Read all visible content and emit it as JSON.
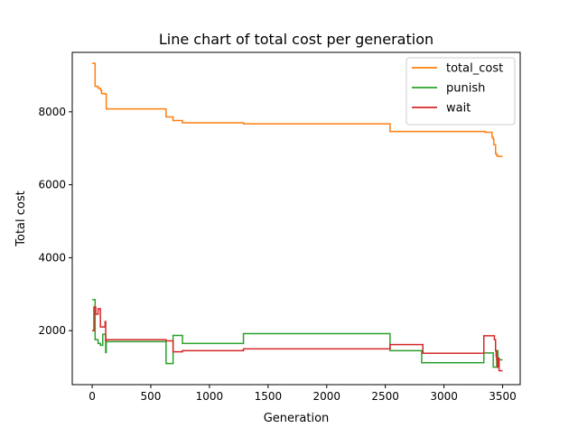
{
  "chart_data": {
    "type": "line",
    "step": true,
    "title": "Line chart of total cost per generation",
    "xlabel": "Generation",
    "ylabel": "Total cost",
    "xlim": [
      -170,
      3650
    ],
    "ylim": [
      520,
      9630
    ],
    "xticks": [
      0,
      500,
      1000,
      1500,
      2000,
      2500,
      3000,
      3500
    ],
    "yticks": [
      2000,
      4000,
      6000,
      8000
    ],
    "grid": false,
    "legend_position": "top-right",
    "series": [
      {
        "name": "total_cost",
        "color": "#ff7f0e",
        "x": [
          0,
          25,
          50,
          70,
          80,
          110,
          120,
          620,
          630,
          680,
          690,
          760,
          770,
          1280,
          1290,
          2530,
          2540,
          3330,
          3350,
          3400,
          3410,
          3420,
          3425,
          3440,
          3450,
          3460,
          3500
        ],
        "y": [
          9330,
          8700,
          8650,
          8600,
          8500,
          8490,
          8080,
          8080,
          7860,
          7860,
          7760,
          7760,
          7700,
          7700,
          7670,
          7670,
          7460,
          7460,
          7440,
          7440,
          7300,
          7250,
          7100,
          6850,
          6800,
          6780,
          6780
        ]
      },
      {
        "name": "punish",
        "color": "#2ca02c",
        "x": [
          0,
          25,
          50,
          70,
          90,
          115,
          120,
          620,
          630,
          680,
          690,
          760,
          770,
          1280,
          1290,
          2530,
          2540,
          2800,
          2810,
          3330,
          3340,
          3410,
          3420,
          3440,
          3450,
          3460,
          3500
        ],
        "y": [
          2850,
          1750,
          1650,
          1600,
          1900,
          1400,
          1700,
          1700,
          1100,
          1100,
          1870,
          1870,
          1650,
          1650,
          1920,
          1920,
          1450,
          1450,
          1120,
          1120,
          1390,
          1390,
          1000,
          1000,
          1450,
          1200,
          1200
        ]
      },
      {
        "name": "wait",
        "color": "#d62728",
        "x": [
          0,
          15,
          30,
          50,
          70,
          90,
          110,
          115,
          120,
          620,
          630,
          680,
          690,
          760,
          770,
          1280,
          1290,
          2530,
          2540,
          2810,
          2820,
          3330,
          3340,
          3420,
          3430,
          3440,
          3445,
          3450,
          3455,
          3460,
          3465,
          3470,
          3500
        ],
        "y": [
          2000,
          2650,
          2450,
          2600,
          2100,
          2100,
          2250,
          1720,
          1750,
          1750,
          1720,
          1720,
          1420,
          1420,
          1450,
          1450,
          1500,
          1500,
          1620,
          1620,
          1380,
          1380,
          1860,
          1860,
          1750,
          1450,
          1300,
          1200,
          1000,
          1150,
          1250,
          900,
          900
        ]
      }
    ]
  }
}
